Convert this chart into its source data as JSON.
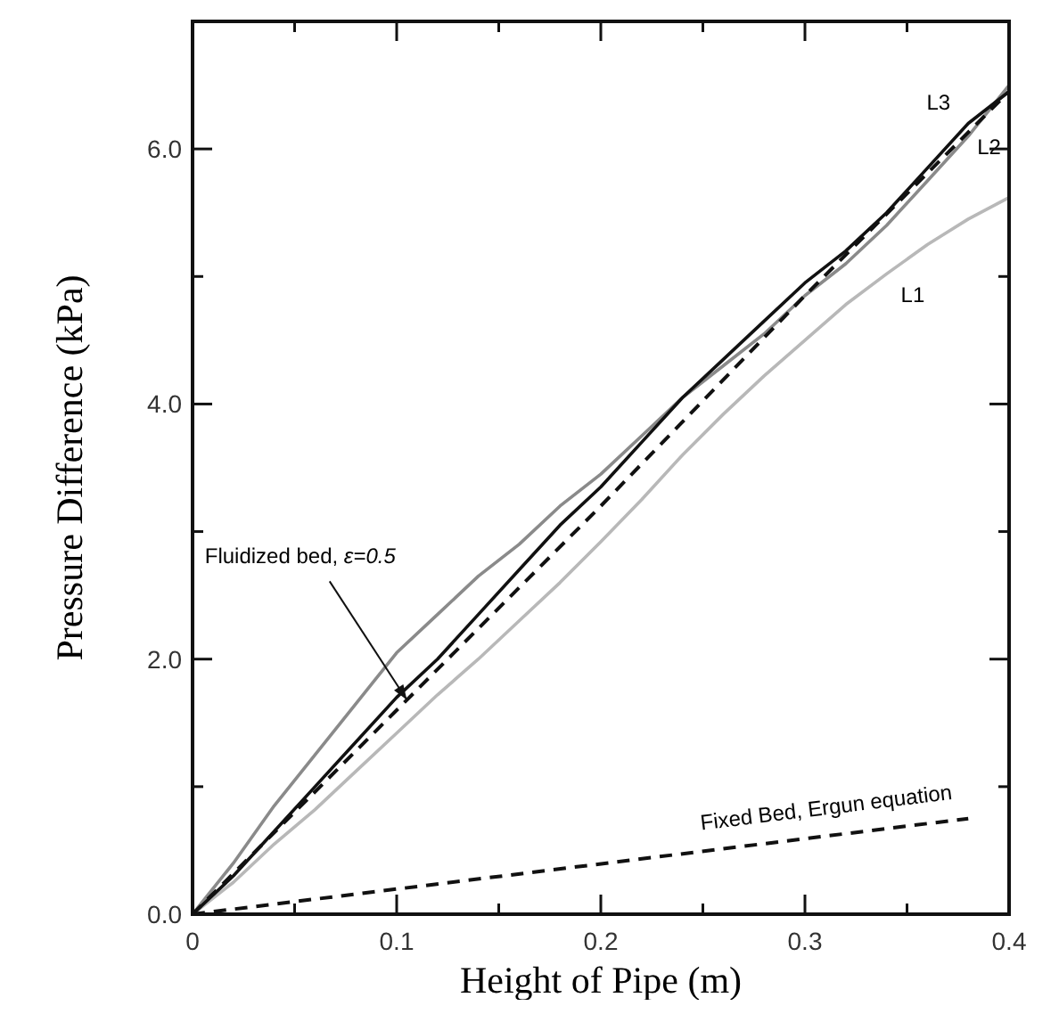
{
  "chart_data": {
    "type": "line",
    "xlabel": "Height of Pipe (m)",
    "ylabel": "Pressure Difference (kPa)",
    "xlim": [
      0,
      0.4
    ],
    "ylim": [
      0,
      7
    ],
    "xticks": [
      0,
      {
        "value": 0.05,
        "label": null
      },
      0.1,
      {
        "value": 0.15,
        "label": null
      },
      0.2,
      {
        "value": 0.25,
        "label": null
      },
      0.3,
      {
        "value": 0.35,
        "label": null
      },
      0.4
    ],
    "yticks": [
      {
        "value": 0,
        "label": "0.0"
      },
      {
        "value": 1,
        "label": null
      },
      {
        "value": 2,
        "label": "2.0"
      },
      {
        "value": 3,
        "label": null
      },
      {
        "value": 4,
        "label": "4.0"
      },
      {
        "value": 5,
        "label": null
      },
      {
        "value": 6,
        "label": "6.0"
      },
      {
        "value": 7,
        "label": null
      }
    ],
    "grid": false,
    "marker": "none",
    "annotations": [
      {
        "text": "Fluidized bed, ε=0.5",
        "x": 0.105,
        "y": 1.68
      }
    ],
    "series": [
      {
        "name": "L1",
        "color": "#b8b8b8",
        "line_style": "solid",
        "x": [
          0,
          0.02,
          0.04,
          0.06,
          0.08,
          0.1,
          0.12,
          0.14,
          0.16,
          0.18,
          0.2,
          0.22,
          0.24,
          0.26,
          0.28,
          0.3,
          0.32,
          0.34,
          0.36,
          0.38,
          0.4
        ],
        "values": [
          0,
          0.25,
          0.55,
          0.82,
          1.12,
          1.42,
          1.72,
          2.0,
          2.3,
          2.6,
          2.92,
          3.25,
          3.6,
          3.92,
          4.22,
          4.5,
          4.78,
          5.02,
          5.25,
          5.45,
          5.62
        ]
      },
      {
        "name": "L2",
        "color": "#8a8a8a",
        "line_style": "solid",
        "x": [
          0,
          0.02,
          0.04,
          0.06,
          0.08,
          0.1,
          0.12,
          0.14,
          0.16,
          0.18,
          0.2,
          0.22,
          0.24,
          0.26,
          0.28,
          0.3,
          0.32,
          0.34,
          0.36,
          0.38,
          0.4
        ],
        "values": [
          0,
          0.4,
          0.85,
          1.25,
          1.65,
          2.05,
          2.35,
          2.65,
          2.9,
          3.2,
          3.45,
          3.75,
          4.05,
          4.3,
          4.55,
          4.85,
          5.1,
          5.4,
          5.75,
          6.1,
          6.5
        ]
      },
      {
        "name": "L3",
        "color": "#111111",
        "line_style": "solid",
        "x": [
          0,
          0.02,
          0.04,
          0.06,
          0.08,
          0.1,
          0.12,
          0.14,
          0.16,
          0.18,
          0.2,
          0.22,
          0.24,
          0.26,
          0.28,
          0.3,
          0.32,
          0.34,
          0.36,
          0.38,
          0.4
        ],
        "values": [
          0,
          0.3,
          0.65,
          1.0,
          1.35,
          1.7,
          2.0,
          2.35,
          2.7,
          3.05,
          3.35,
          3.7,
          4.05,
          4.35,
          4.65,
          4.95,
          5.2,
          5.5,
          5.85,
          6.2,
          6.45
        ]
      },
      {
        "color": "#111111",
        "line_style": "dashed",
        "x": [
          0,
          0.1,
          0.2,
          0.3,
          0.4
        ],
        "values": [
          0,
          1.6,
          3.2,
          4.85,
          6.45
        ]
      },
      {
        "name": "Fixed Bed, Ergun equation",
        "color": "#111111",
        "line_style": "dashed",
        "x": [
          0,
          0.38
        ],
        "values": [
          0,
          0.75
        ]
      }
    ]
  }
}
